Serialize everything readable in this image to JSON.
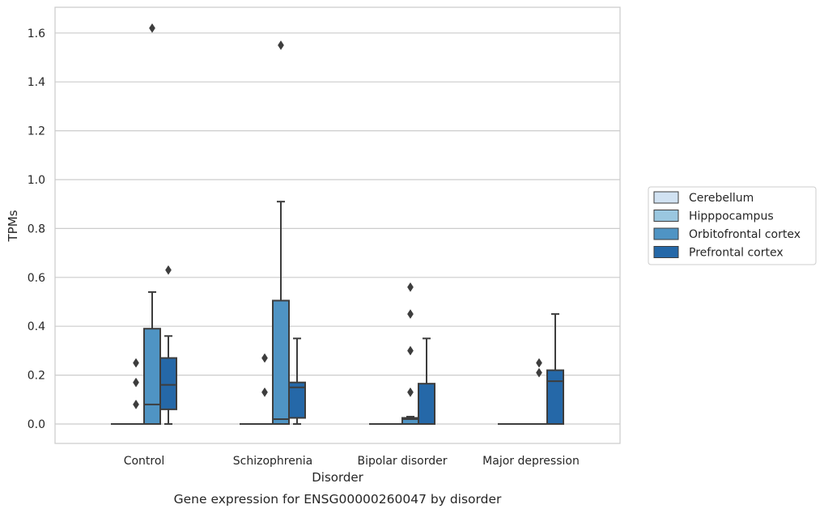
{
  "caption": "Gene expression for ENSG00000260047 by disorder",
  "chart_data": {
    "type": "box",
    "title": "",
    "xlabel": "Disorder",
    "ylabel": "TPMs",
    "ylim": [
      -0.08,
      1.7
    ],
    "yticks": [
      "0.0",
      "0.2",
      "0.4",
      "0.6",
      "0.8",
      "1.0",
      "1.2",
      "1.4",
      "1.6"
    ],
    "grid": "horizontal",
    "legend_position": "right",
    "categories": [
      "Control",
      "Schizophrenia",
      "Bipolar disorder",
      "Major depression"
    ],
    "series": [
      {
        "name": "Cerebellum",
        "color": "#d1e2f2",
        "boxes": [
          {
            "q1": 0,
            "median": 0,
            "q3": 0,
            "whislo": 0,
            "whishi": 0,
            "fliers": []
          },
          {
            "q1": 0,
            "median": 0,
            "q3": 0,
            "whislo": 0,
            "whishi": 0,
            "fliers": []
          },
          {
            "q1": 0,
            "median": 0,
            "q3": 0,
            "whislo": 0,
            "whishi": 0,
            "fliers": []
          },
          {
            "q1": 0,
            "median": 0,
            "q3": 0,
            "whislo": 0,
            "whishi": 0,
            "fliers": []
          }
        ]
      },
      {
        "name": "Hipppocampus",
        "color": "#9ac7e0",
        "boxes": [
          {
            "q1": 0,
            "median": 0,
            "q3": 0,
            "whislo": 0,
            "whishi": 0,
            "fliers": [
              0.08,
              0.17,
              0.25
            ]
          },
          {
            "q1": 0,
            "median": 0,
            "q3": 0,
            "whislo": 0,
            "whishi": 0,
            "fliers": [
              0.13,
              0.27
            ]
          },
          {
            "q1": 0,
            "median": 0,
            "q3": 0,
            "whislo": 0,
            "whishi": 0,
            "fliers": []
          },
          {
            "q1": 0,
            "median": 0,
            "q3": 0,
            "whislo": 0,
            "whishi": 0,
            "fliers": []
          }
        ]
      },
      {
        "name": "Orbitofrontal cortex",
        "color": "#4f94c4",
        "boxes": [
          {
            "q1": 0,
            "median": 0.08,
            "q3": 0.39,
            "whislo": 0,
            "whishi": 0.54,
            "fliers": [
              1.62
            ]
          },
          {
            "q1": 0,
            "median": 0.02,
            "q3": 0.505,
            "whislo": 0,
            "whishi": 0.91,
            "fliers": [
              1.55
            ]
          },
          {
            "q1": 0,
            "median": 0.02,
            "q3": 0.025,
            "whislo": 0,
            "whishi": 0.03,
            "fliers": [
              0.13,
              0.3,
              0.45,
              0.56
            ]
          },
          {
            "q1": 0,
            "median": 0,
            "q3": 0,
            "whislo": 0,
            "whishi": 0,
            "fliers": [
              0.21,
              0.25
            ]
          }
        ]
      },
      {
        "name": "Prefrontal cortex",
        "color": "#2568a8",
        "boxes": [
          {
            "q1": 0.06,
            "median": 0.16,
            "q3": 0.27,
            "whislo": 0,
            "whishi": 0.36,
            "fliers": [
              0.63
            ]
          },
          {
            "q1": 0.025,
            "median": 0.15,
            "q3": 0.17,
            "whislo": 0,
            "whishi": 0.35,
            "fliers": []
          },
          {
            "q1": 0,
            "median": 0,
            "q3": 0.165,
            "whislo": 0,
            "whishi": 0.35,
            "fliers": []
          },
          {
            "q1": 0,
            "median": 0.175,
            "q3": 0.22,
            "whislo": 0,
            "whishi": 0.45,
            "fliers": []
          }
        ]
      }
    ]
  }
}
